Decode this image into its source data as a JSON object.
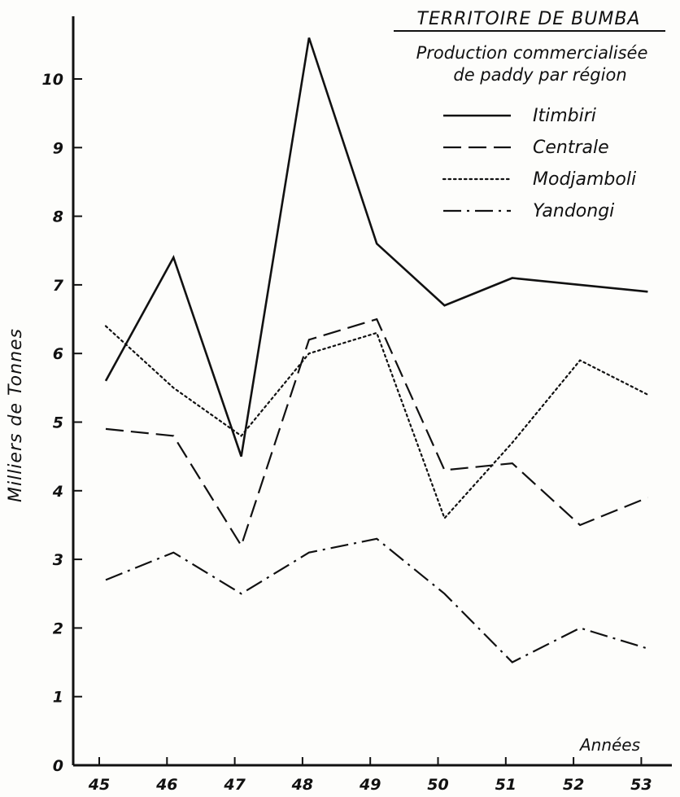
{
  "chart_data": {
    "type": "line",
    "title": "TERRITOIRE DE BUMBA",
    "subtitle": [
      "Production commercialisée",
      "de paddy par région"
    ],
    "xlabel": "Années",
    "ylabel": "Milliers de Tonnes",
    "x": [
      "45",
      "46",
      "47",
      "48",
      "49",
      "50",
      "51",
      "52",
      "53"
    ],
    "yticks": [
      "0",
      "1",
      "2",
      "3",
      "4",
      "5",
      "6",
      "7",
      "8",
      "9",
      "10"
    ],
    "ylim": [
      0,
      10.8
    ],
    "legend_position": "top-right",
    "series": [
      {
        "name": "Itimbiri",
        "style": "solid",
        "values": [
          5.6,
          7.4,
          4.5,
          10.6,
          7.6,
          6.7,
          7.1,
          7.0,
          6.9
        ]
      },
      {
        "name": "Centrale",
        "style": "dashed",
        "values": [
          4.9,
          4.8,
          3.2,
          6.2,
          6.5,
          4.3,
          4.4,
          3.5,
          3.9
        ]
      },
      {
        "name": "Modjamboli",
        "style": "dotted",
        "values": [
          6.4,
          5.5,
          4.8,
          6.0,
          6.3,
          3.6,
          4.7,
          5.9,
          5.4
        ]
      },
      {
        "name": "Yandongi",
        "style": "dashdot",
        "values": [
          2.7,
          3.1,
          2.5,
          3.1,
          3.3,
          2.5,
          1.5,
          2.0,
          1.7
        ]
      }
    ],
    "colors": {
      "ink": "#111111",
      "paper": "#fdfdfb"
    }
  }
}
